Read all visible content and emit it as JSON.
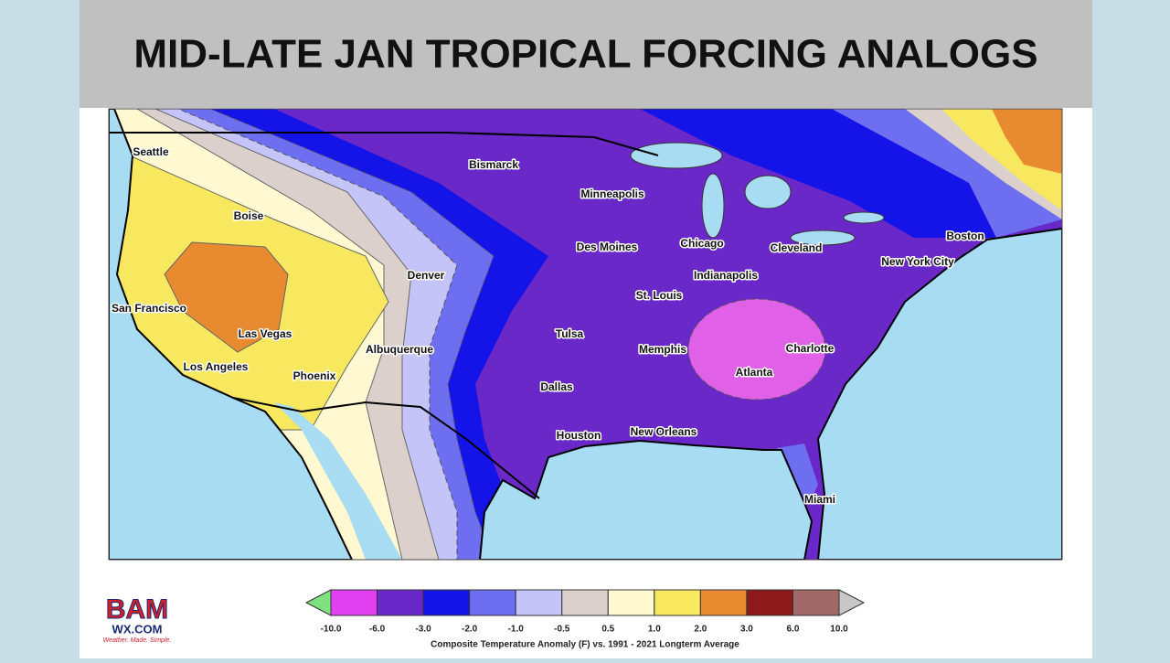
{
  "header": {
    "title": "MID-LATE JAN TROPICAL FORCING ANALOGS"
  },
  "map": {
    "cities": [
      "Seattle",
      "Bismarck",
      "Minneapolis",
      "Boise",
      "Des Moines",
      "Chicago",
      "Cleveland",
      "Boston",
      "New York City",
      "Denver",
      "Indianapolis",
      "San Francisco",
      "St. Louis",
      "Las Vegas",
      "Tulsa",
      "Memphis",
      "Charlotte",
      "Albuquerque",
      "Atlanta",
      "Los Angeles",
      "Phoenix",
      "Dallas",
      "New Orleans",
      "Houston",
      "Miami"
    ]
  },
  "legend": {
    "under_color": "#7ee07e",
    "over_color": "#c8c8c8",
    "colors": [
      "#e040f0",
      "#6a28c8",
      "#1414e8",
      "#6e6ef0",
      "#c4c4f8",
      "#dcd0cc",
      "#fff8d0",
      "#f8e860",
      "#e88a30",
      "#8c1a1a",
      "#a06868"
    ],
    "ticks": [
      "-10.0",
      "-6.0",
      "-3.0",
      "-2.0",
      "-1.0",
      "-0.5",
      "0.5",
      "1.0",
      "2.0",
      "3.0",
      "6.0",
      "10.0"
    ],
    "caption": "Composite Temperature Anomaly (F) vs. 1991 - 2021 Longterm Average"
  },
  "logo": {
    "name": "BAM",
    "site": "WX.COM",
    "tagline": "Weather. Made. Simple."
  }
}
